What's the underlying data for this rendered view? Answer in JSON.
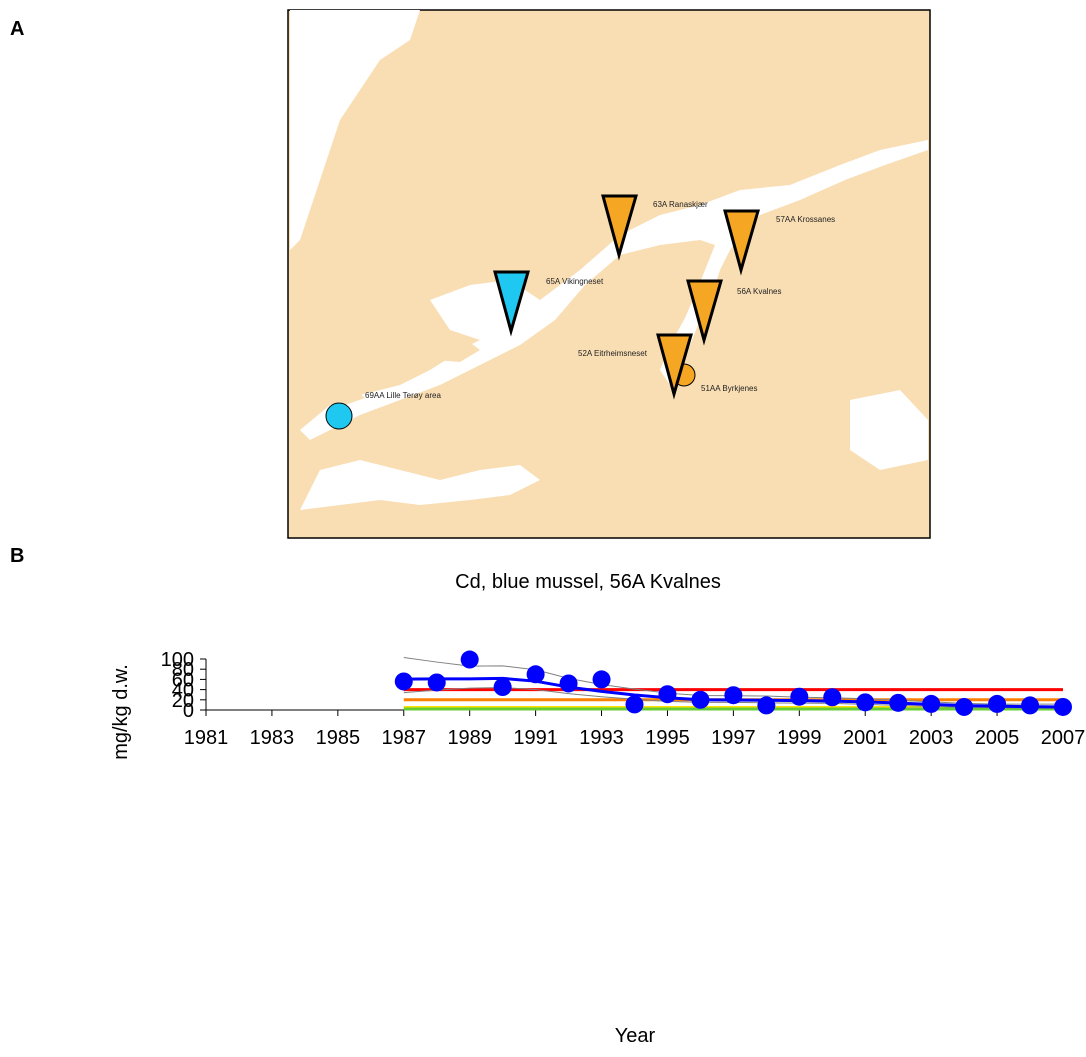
{
  "panels": {
    "a": "A",
    "b": "B"
  },
  "map": {
    "land_color": "#f9deb4",
    "water_color": "#ffffff",
    "stations": [
      {
        "label": "63A Ranaskjær",
        "marker": "triangle",
        "color": "#f5a623"
      },
      {
        "label": "57AA Krossanes",
        "marker": "triangle",
        "color": "#f5a623"
      },
      {
        "label": "65A Vikingneset",
        "marker": "triangle",
        "color": "#1ec8f0"
      },
      {
        "label": "56A Kvalnes",
        "marker": "triangle",
        "color": "#f5a623"
      },
      {
        "label": "52A Eitrheimsneset",
        "marker": "triangle",
        "color": "#f5a623"
      },
      {
        "label": "51AA Byrkjenes",
        "marker": "circle",
        "color": "#f5a623"
      },
      {
        "label": "69AA Lille Terøy area",
        "marker": "circle",
        "color": "#1ec8f0"
      }
    ]
  },
  "chart_data": {
    "type": "scatter",
    "title": "Cd, blue mussel, 56A Kvalnes",
    "xlabel": "Year",
    "ylabel": "mg/kg d.w.",
    "xlim": [
      1981,
      2007
    ],
    "ylim": [
      0,
      100
    ],
    "x_ticks": [
      "1981",
      "1983",
      "1985",
      "1987",
      "1989",
      "1991",
      "1993",
      "1995",
      "1997",
      "1999",
      "2001",
      "2003",
      "2005",
      "2007"
    ],
    "y_ticks": [
      "0",
      "20",
      "40",
      "60",
      "80",
      "100"
    ],
    "points": {
      "color": "#0000ff",
      "x": [
        1987,
        1988,
        1989,
        1990,
        1991,
        1992,
        1993,
        1994,
        1995,
        1996,
        1997,
        1998,
        1999,
        2000,
        2001,
        2002,
        2003,
        2004,
        2005,
        2006,
        2007
      ],
      "y": [
        56,
        54,
        99,
        45,
        70,
        52,
        60,
        11,
        31,
        20,
        29,
        9,
        26,
        25,
        15,
        14,
        12,
        6,
        12,
        9,
        6
      ]
    },
    "trend": {
      "color": "#0000ff",
      "x": [
        1987,
        1988,
        1989,
        1990,
        1991,
        1992,
        1993,
        1994,
        1995,
        1996,
        1997,
        1998,
        1999,
        2000,
        2001,
        2002,
        2003,
        2004,
        2005,
        2006,
        2007
      ],
      "y": [
        60.5,
        61,
        61,
        62,
        56.5,
        45,
        36.5,
        29.5,
        24,
        20,
        19.5,
        19,
        18.5,
        17.5,
        16,
        13.5,
        11,
        8.5,
        7.5,
        6.5,
        6
      ]
    },
    "upper_band": {
      "color": "#808080",
      "x": [
        1987,
        1988,
        1989,
        1990,
        1991,
        1992,
        1993,
        1994,
        1995,
        1996,
        1997,
        1998,
        1999,
        2000,
        2001,
        2002,
        2003,
        2004,
        2005,
        2006,
        2007
      ],
      "y": [
        103,
        94,
        86,
        86.5,
        79,
        62,
        50,
        41,
        33,
        28.5,
        28,
        27.5,
        25,
        24,
        22,
        19,
        16,
        13,
        11.5,
        11.5,
        11.5
      ]
    },
    "lower_band": {
      "color": "#808080",
      "x": [
        1987,
        1988,
        1989,
        1990,
        1991,
        1992,
        1993,
        1994,
        1995,
        1996,
        1997,
        1998,
        1999,
        2000,
        2001,
        2002,
        2003,
        2004,
        2005,
        2006,
        2007
      ],
      "y": [
        34,
        39,
        43,
        44,
        40,
        32,
        26,
        21,
        17,
        15,
        15,
        14,
        13.5,
        13,
        11,
        9,
        7,
        5,
        4.5,
        4,
        3.5
      ]
    },
    "class_lines": [
      {
        "color": "#ff0000",
        "y": 40,
        "x": [
          1987,
          2007
        ]
      },
      {
        "color": "#ff8000",
        "y": 20,
        "x": [
          1987,
          2007
        ]
      },
      {
        "color": "#ffe000",
        "y": 5,
        "x": [
          1987,
          2007
        ]
      },
      {
        "color": "#66cc33",
        "y": 2,
        "x": [
          1987,
          2007
        ]
      }
    ],
    "grid": false,
    "legend": "none"
  }
}
